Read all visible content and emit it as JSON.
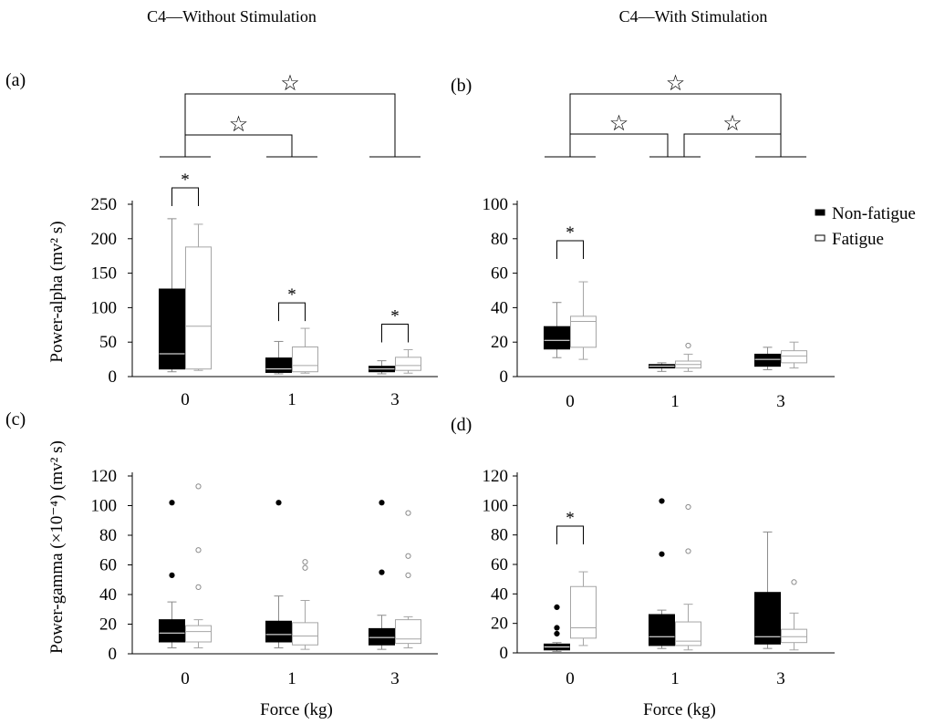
{
  "figure": {
    "col_titles": [
      "C4—Without Stimulation",
      "C4—With Stimulation"
    ],
    "panel_tags": [
      "(a)",
      "(b)",
      "(c)",
      "(d)"
    ],
    "y_titles": {
      "top": "Power-alpha  (mv² s)",
      "bottom": "Power-gamma (×10⁻⁴) (mv² s)"
    },
    "x_title": "Force (kg)",
    "legend": [
      {
        "label": "Non-fatigue",
        "fill": "#000000",
        "stroke": "#000000"
      },
      {
        "label": "Fatigue",
        "fill": "#ffffff",
        "stroke": "#000000"
      }
    ],
    "colors": {
      "non_fatigue": "#000000",
      "fatigue": "#a6a6a6",
      "axis": "#000000"
    }
  },
  "chart_data": [
    {
      "panel": "(a)",
      "type": "box",
      "title": "C4—Without Stimulation",
      "ylabel": "Power-alpha  (mv² s)",
      "categories": [
        "0",
        "1",
        "3"
      ],
      "ylim": [
        0,
        250
      ],
      "yticks": [
        0,
        50,
        100,
        150,
        200,
        250
      ],
      "series": [
        {
          "name": "Non-fatigue",
          "boxes": [
            {
              "min": 7,
              "q1": 11,
              "median": 33,
              "q3": 127,
              "max": 229,
              "outliers": []
            },
            {
              "min": 4,
              "q1": 6,
              "median": 11,
              "q3": 27,
              "max": 51,
              "outliers": []
            },
            {
              "min": 4,
              "q1": 7,
              "median": 11,
              "q3": 15,
              "max": 23,
              "outliers": []
            }
          ]
        },
        {
          "name": "Fatigue",
          "boxes": [
            {
              "min": 9,
              "q1": 11,
              "median": 73,
              "q3": 188,
              "max": 221,
              "outliers": []
            },
            {
              "min": 5,
              "q1": 7,
              "median": 16,
              "q3": 43,
              "max": 70,
              "outliers": []
            },
            {
              "min": 5,
              "q1": 9,
              "median": 16,
              "q3": 28,
              "max": 39,
              "outliers": []
            }
          ]
        }
      ],
      "significance": [
        "0",
        "1",
        "3"
      ],
      "sig_marker": "*",
      "group_brackets": [
        {
          "from": "0",
          "to": "3",
          "marker": "☆"
        },
        {
          "from": "0",
          "to": "1",
          "marker": "☆"
        }
      ]
    },
    {
      "panel": "(b)",
      "type": "box",
      "title": "C4—With Stimulation",
      "categories": [
        "0",
        "1",
        "3"
      ],
      "ylim": [
        0,
        100
      ],
      "yticks": [
        0,
        20,
        40,
        60,
        80,
        100
      ],
      "series": [
        {
          "name": "Non-fatigue",
          "boxes": [
            {
              "min": 11,
              "q1": 16,
              "median": 21,
              "q3": 29,
              "max": 43,
              "outliers": []
            },
            {
              "min": 3,
              "q1": 5,
              "median": 6,
              "q3": 7,
              "max": 8,
              "outliers": []
            },
            {
              "min": 4,
              "q1": 6,
              "median": 10,
              "q3": 13,
              "max": 17,
              "outliers": []
            }
          ]
        },
        {
          "name": "Fatigue",
          "boxes": [
            {
              "min": 10,
              "q1": 17,
              "median": 32,
              "q3": 35,
              "max": 55,
              "outliers": []
            },
            {
              "min": 3,
              "q1": 5,
              "median": 7,
              "q3": 9,
              "max": 13,
              "outliers": [
                18
              ]
            },
            {
              "min": 5,
              "q1": 8,
              "median": 12,
              "q3": 15,
              "max": 20,
              "outliers": []
            }
          ]
        }
      ],
      "significance": [
        "0"
      ],
      "sig_marker": "*",
      "group_brackets": [
        {
          "from": "0",
          "to": "3",
          "marker": "☆"
        },
        {
          "from": "0",
          "to": "1",
          "marker": "☆"
        },
        {
          "from": "1",
          "to": "3",
          "marker": "☆"
        }
      ]
    },
    {
      "panel": "(c)",
      "type": "box",
      "ylabel": "Power-gamma (×10⁻⁴) (mv² s)",
      "xlabel": "Force (kg)",
      "categories": [
        "0",
        "1",
        "3"
      ],
      "ylim": [
        0,
        120
      ],
      "yticks": [
        0,
        20,
        40,
        60,
        80,
        100,
        120
      ],
      "series": [
        {
          "name": "Non-fatigue",
          "boxes": [
            {
              "min": 4,
              "q1": 8,
              "median": 14,
              "q3": 23,
              "max": 35,
              "outliers": [
                53,
                102
              ]
            },
            {
              "min": 4,
              "q1": 8,
              "median": 13,
              "q3": 22,
              "max": 39,
              "outliers": [
                102
              ]
            },
            {
              "min": 3,
              "q1": 6,
              "median": 11,
              "q3": 17,
              "max": 26,
              "outliers": [
                55,
                102
              ]
            }
          ]
        },
        {
          "name": "Fatigue",
          "boxes": [
            {
              "min": 4,
              "q1": 8,
              "median": 15,
              "q3": 19,
              "max": 23,
              "outliers": [
                45,
                70,
                113
              ]
            },
            {
              "min": 3,
              "q1": 6,
              "median": 12,
              "q3": 21,
              "max": 36,
              "outliers": [
                58,
                62
              ]
            },
            {
              "min": 4,
              "q1": 7,
              "median": 10,
              "q3": 23,
              "max": 25,
              "outliers": [
                53,
                66,
                95
              ]
            }
          ]
        }
      ],
      "significance": []
    },
    {
      "panel": "(d)",
      "type": "box",
      "xlabel": "Force (kg)",
      "categories": [
        "0",
        "1",
        "3"
      ],
      "ylim": [
        0,
        120
      ],
      "yticks": [
        0,
        20,
        40,
        60,
        80,
        100,
        120
      ],
      "series": [
        {
          "name": "Non-fatigue",
          "boxes": [
            {
              "min": 1,
              "q1": 2,
              "median": 4,
              "q3": 6,
              "max": 7,
              "outliers": [
                13,
                17,
                31
              ]
            },
            {
              "min": 3,
              "q1": 5,
              "median": 11,
              "q3": 26,
              "max": 29,
              "outliers": [
                67,
                103
              ]
            },
            {
              "min": 3,
              "q1": 6,
              "median": 11,
              "q3": 41,
              "max": 82,
              "outliers": []
            }
          ]
        },
        {
          "name": "Fatigue",
          "boxes": [
            {
              "min": 5,
              "q1": 10,
              "median": 17,
              "q3": 45,
              "max": 55,
              "outliers": []
            },
            {
              "min": 2,
              "q1": 5,
              "median": 8,
              "q3": 21,
              "max": 33,
              "outliers": [
                69,
                99
              ]
            },
            {
              "min": 2,
              "q1": 7,
              "median": 11,
              "q3": 16,
              "max": 27,
              "outliers": [
                48
              ]
            }
          ]
        }
      ],
      "significance": [
        "0"
      ],
      "sig_marker": "*"
    }
  ]
}
